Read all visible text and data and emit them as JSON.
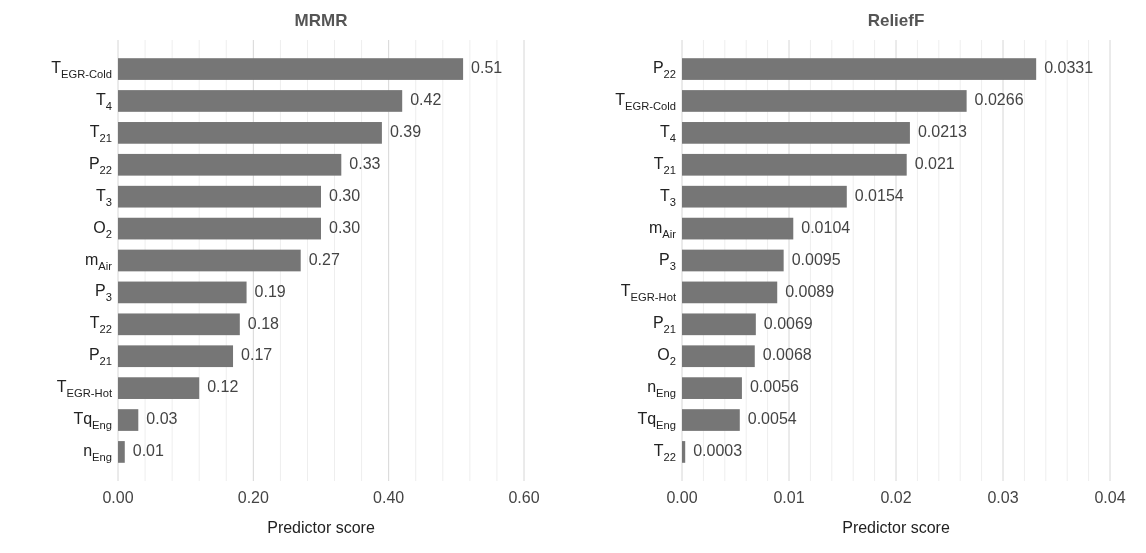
{
  "chart_data": [
    {
      "type": "bar",
      "orientation": "horizontal",
      "title": "MRMR",
      "xlabel": "Predictor score",
      "color": "#767676",
      "grid": "x",
      "categories": [
        "T$_{EGR-Cold}$",
        "T$_{4}$",
        "T$_{21}$",
        "P$_{22}$",
        "T$_{3}$",
        "O$_{2}$",
        "m$_{Air}$",
        "P$_{3}$",
        "T$_{22}$",
        "P$_{21}$",
        "T$_{EGR-Hot}$",
        "Tq$_{Eng}$",
        "n$_{Eng}$"
      ],
      "values": [
        0.51,
        0.42,
        0.39,
        0.33,
        0.3,
        0.3,
        0.27,
        0.19,
        0.18,
        0.17,
        0.12,
        0.03,
        0.01
      ],
      "value_labels": [
        "0.51",
        "0.42",
        "0.39",
        "0.33",
        "0.30",
        "0.30",
        "0.27",
        "0.19",
        "0.18",
        "0.17",
        "0.12",
        "0.03",
        "0.01"
      ],
      "xlim": [
        0,
        0.6
      ],
      "xticks": [
        {
          "value": 0,
          "label": "0.00"
        },
        {
          "value": 0.04,
          "label": null
        },
        {
          "value": 0.08,
          "label": null
        },
        {
          "value": 0.12,
          "label": null
        },
        {
          "value": 0.16,
          "label": null
        },
        {
          "value": 0.2,
          "label": "0.20"
        },
        {
          "value": 0.24,
          "label": null
        },
        {
          "value": 0.28,
          "label": null
        },
        {
          "value": 0.32,
          "label": null
        },
        {
          "value": 0.36,
          "label": null
        },
        {
          "value": 0.4,
          "label": "0.40"
        },
        {
          "value": 0.44,
          "label": null
        },
        {
          "value": 0.48,
          "label": null
        },
        {
          "value": 0.52,
          "label": null
        },
        {
          "value": 0.56,
          "label": null
        },
        {
          "value": 0.6,
          "label": "0.60"
        }
      ]
    },
    {
      "type": "bar",
      "orientation": "horizontal",
      "title": "ReliefF",
      "xlabel": "Predictor score",
      "color": "#767676",
      "grid": "x",
      "categories": [
        "P$_{22}$",
        "T$_{EGR-Cold}$",
        "T$_{4}$",
        "T$_{21}$",
        "T$_{3}$",
        "m$_{Air}$",
        "P$_{3}$",
        "T$_{EGR-Hot}$",
        "P$_{21}$",
        "O$_{2}$",
        "n$_{Eng}$",
        "Tq$_{Eng}$",
        "T$_{22}$"
      ],
      "values": [
        0.0331,
        0.0266,
        0.0213,
        0.021,
        0.0154,
        0.0104,
        0.0095,
        0.0089,
        0.0069,
        0.0068,
        0.0056,
        0.0054,
        0.0003
      ],
      "value_labels": [
        "0.0331",
        "0.0266",
        "0.0213",
        "0.021",
        "0.0154",
        "0.0104",
        "0.0095",
        "0.0089",
        "0.0069",
        "0.0068",
        "0.0056",
        "0.0054",
        "0.0003"
      ],
      "xlim": [
        0,
        0.04
      ],
      "xticks": [
        {
          "value": 0,
          "label": "0.00"
        },
        {
          "value": 0.002,
          "label": null
        },
        {
          "value": 0.004,
          "label": null
        },
        {
          "value": 0.006,
          "label": null
        },
        {
          "value": 0.008,
          "label": null
        },
        {
          "value": 0.01,
          "label": "0.01"
        },
        {
          "value": 0.012,
          "label": null
        },
        {
          "value": 0.014,
          "label": null
        },
        {
          "value": 0.016,
          "label": null
        },
        {
          "value": 0.018,
          "label": null
        },
        {
          "value": 0.02,
          "label": "0.02"
        },
        {
          "value": 0.022,
          "label": null
        },
        {
          "value": 0.024,
          "label": null
        },
        {
          "value": 0.026,
          "label": null
        },
        {
          "value": 0.028,
          "label": null
        },
        {
          "value": 0.03,
          "label": "0.03"
        },
        {
          "value": 0.032,
          "label": null
        },
        {
          "value": 0.034,
          "label": null
        },
        {
          "value": 0.036,
          "label": null
        },
        {
          "value": 0.038,
          "label": null
        },
        {
          "value": 0.04,
          "label": "0.04"
        }
      ]
    }
  ]
}
